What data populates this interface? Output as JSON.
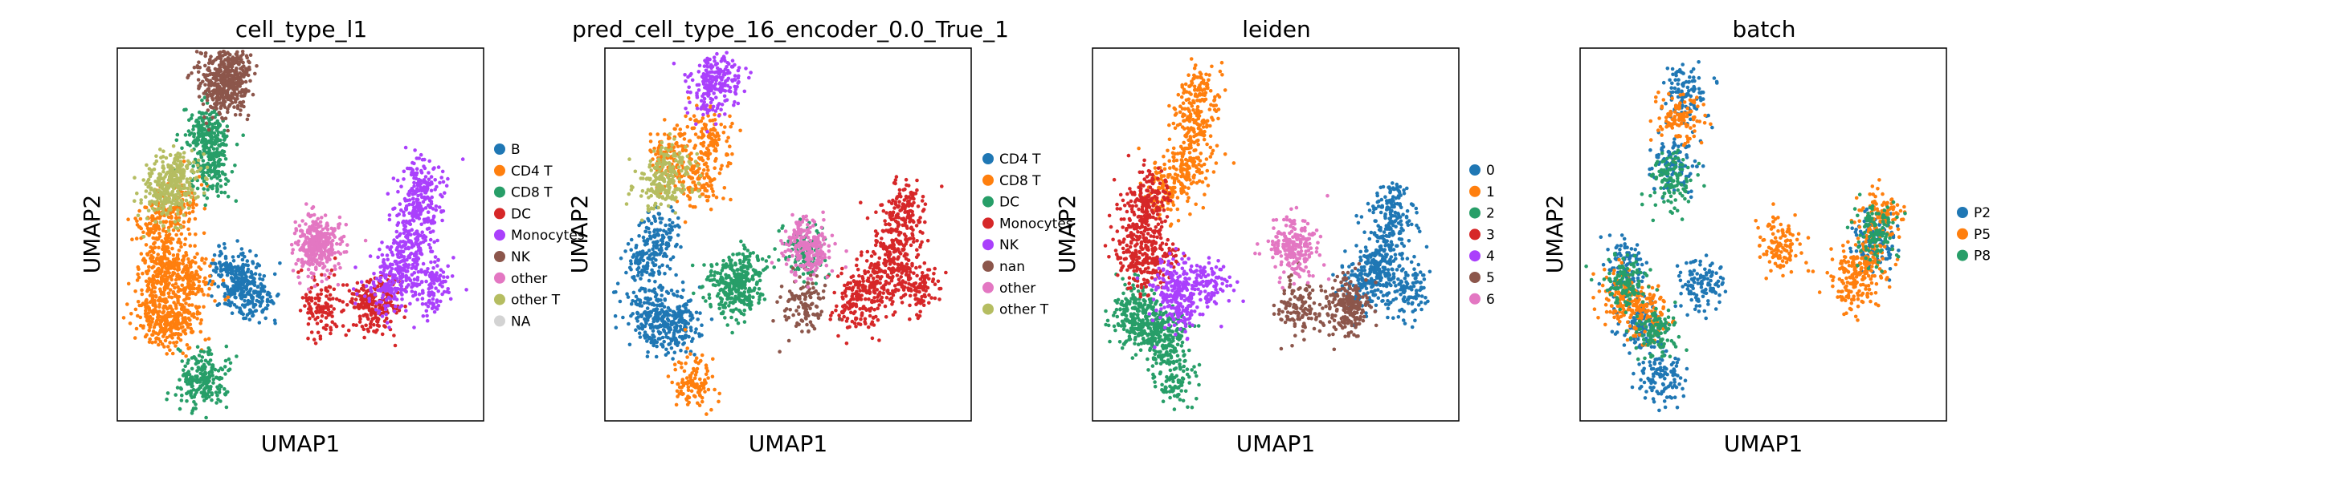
{
  "panels": [
    {
      "title": "cell_type_l1",
      "xlabel": "UMAP1",
      "ylabel": "UMAP2",
      "legend": [
        {
          "label": "B",
          "color": "#1f77b4"
        },
        {
          "label": "CD4 T",
          "color": "#ff7f0e"
        },
        {
          "label": "CD8 T",
          "color": "#279e68"
        },
        {
          "label": "DC",
          "color": "#d62728"
        },
        {
          "label": "Monocytes",
          "color": "#aa40fc"
        },
        {
          "label": "NK",
          "color": "#8c564b"
        },
        {
          "label": "other",
          "color": "#e377c2"
        },
        {
          "label": "other T",
          "color": "#b5bd61"
        },
        {
          "label": "NA",
          "color": "#d3d3d3"
        }
      ]
    },
    {
      "title": "pred_cell_type_16_encoder_0.0_True_1",
      "xlabel": "UMAP1",
      "ylabel": "UMAP2",
      "legend": [
        {
          "label": "CD4 T",
          "color": "#1f77b4"
        },
        {
          "label": "CD8 T",
          "color": "#ff7f0e"
        },
        {
          "label": "DC",
          "color": "#279e68"
        },
        {
          "label": "Monocytes",
          "color": "#d62728"
        },
        {
          "label": "NK",
          "color": "#aa40fc"
        },
        {
          "label": "nan",
          "color": "#8c564b"
        },
        {
          "label": "other",
          "color": "#e377c2"
        },
        {
          "label": "other T",
          "color": "#b5bd61"
        }
      ]
    },
    {
      "title": "leiden",
      "xlabel": "UMAP1",
      "ylabel": "UMAP2",
      "legend": [
        {
          "label": "0",
          "color": "#1f77b4"
        },
        {
          "label": "1",
          "color": "#ff7f0e"
        },
        {
          "label": "2",
          "color": "#279e68"
        },
        {
          "label": "3",
          "color": "#d62728"
        },
        {
          "label": "4",
          "color": "#aa40fc"
        },
        {
          "label": "5",
          "color": "#8c564b"
        },
        {
          "label": "6",
          "color": "#e377c2"
        }
      ]
    },
    {
      "title": "batch",
      "xlabel": "UMAP1",
      "ylabel": "UMAP2",
      "legend": [
        {
          "label": "P2",
          "color": "#1f77b4"
        },
        {
          "label": "P5",
          "color": "#ff7f0e"
        },
        {
          "label": "P8",
          "color": "#279e68"
        }
      ]
    }
  ],
  "chart_data": [
    {
      "type": "scatter",
      "title": "cell_type_l1",
      "xlabel": "UMAP1",
      "ylabel": "UMAP2",
      "series": [
        {
          "name": "B",
          "color": "#1f77b4",
          "points": [
            [
              3.2,
              3.6
            ],
            [
              3.6,
              3.2
            ],
            [
              3.0,
              3.9
            ]
          ]
        },
        {
          "name": "CD4 T",
          "color": "#ff7f0e",
          "points": [
            [
              0.9,
              3.9
            ],
            [
              1.2,
              4.2
            ],
            [
              0.8,
              5.2
            ],
            [
              0.7,
              2.8
            ],
            [
              1.1,
              2.5
            ],
            [
              1.6,
              2.6
            ],
            [
              1.9,
              3.8
            ],
            [
              1.5,
              5.8
            ]
          ]
        },
        {
          "name": "CD8 T",
          "color": "#279e68",
          "points": [
            [
              2.0,
              0.8
            ],
            [
              2.3,
              0.9
            ],
            [
              2.4,
              6.8
            ],
            [
              2.5,
              7.6
            ],
            [
              2.2,
              8.0
            ]
          ]
        },
        {
          "name": "DC",
          "color": "#d62728",
          "points": [
            [
              6.9,
              3.0
            ],
            [
              7.3,
              3.0
            ],
            [
              5.6,
              2.9
            ]
          ]
        },
        {
          "name": "Monocytes",
          "color": "#aa40fc",
          "points": [
            [
              8.2,
              4.8
            ],
            [
              8.4,
              5.8
            ],
            [
              8.0,
              4.0
            ],
            [
              8.8,
              3.5
            ],
            [
              7.5,
              3.5
            ],
            [
              8.6,
              6.5
            ]
          ]
        },
        {
          "name": "NK",
          "color": "#8c564b",
          "points": [
            [
              2.7,
              9.0
            ],
            [
              3.0,
              9.3
            ],
            [
              2.6,
              9.6
            ],
            [
              3.0,
              9.8
            ]
          ]
        },
        {
          "name": "other",
          "color": "#e377c2",
          "points": [
            [
              5.5,
              4.6
            ],
            [
              5.6,
              4.7
            ],
            [
              5.4,
              4.7
            ]
          ]
        },
        {
          "name": "other T",
          "color": "#b5bd61",
          "points": [
            [
              1.2,
              6.4
            ],
            [
              1.6,
              6.8
            ],
            [
              0.9,
              6.1
            ]
          ]
        }
      ]
    },
    {
      "type": "scatter",
      "title": "pred_cell_type_16_encoder_0.0_True_1",
      "xlabel": "UMAP1",
      "ylabel": "UMAP2",
      "series": [
        {
          "name": "CD4 T",
          "color": "#1f77b4",
          "points": [
            [
              0.9,
              2.7
            ],
            [
              1.4,
              2.4
            ],
            [
              1.9,
              2.6
            ],
            [
              0.9,
              4.1
            ],
            [
              1.2,
              5.0
            ]
          ]
        },
        {
          "name": "CD8 T",
          "color": "#ff7f0e",
          "points": [
            [
              2.2,
              0.8
            ],
            [
              2.4,
              6.6
            ],
            [
              2.7,
              7.8
            ],
            [
              1.6,
              7.2
            ]
          ]
        },
        {
          "name": "DC",
          "color": "#279e68",
          "points": [
            [
              3.2,
              3.6
            ],
            [
              3.5,
              3.4
            ],
            [
              3.8,
              3.9
            ],
            [
              5.4,
              4.6
            ]
          ]
        },
        {
          "name": "Monocytes",
          "color": "#d62728",
          "points": [
            [
              8.2,
              4.8
            ],
            [
              8.4,
              5.8
            ],
            [
              8.0,
              4.0
            ],
            [
              8.8,
              3.5
            ],
            [
              7.5,
              3.5
            ],
            [
              6.9,
              3.0
            ]
          ]
        },
        {
          "name": "NK",
          "color": "#aa40fc",
          "points": [
            [
              2.7,
              9.1
            ],
            [
              3.0,
              9.6
            ]
          ]
        },
        {
          "name": "nan",
          "color": "#8c564b",
          "points": [
            [
              5.5,
              3.0
            ]
          ]
        },
        {
          "name": "other",
          "color": "#e377c2",
          "points": [
            [
              5.5,
              4.7
            ],
            [
              5.6,
              4.6
            ]
          ]
        },
        {
          "name": "other T",
          "color": "#b5bd61",
          "points": [
            [
              1.2,
              6.4
            ],
            [
              1.6,
              6.8
            ]
          ]
        }
      ]
    },
    {
      "type": "scatter",
      "title": "leiden",
      "xlabel": "UMAP1",
      "ylabel": "UMAP2",
      "series": [
        {
          "name": "0",
          "color": "#1f77b4",
          "points": [
            [
              8.2,
              4.8
            ],
            [
              8.4,
              5.8
            ],
            [
              8.0,
              4.0
            ],
            [
              8.8,
              3.5
            ],
            [
              7.5,
              3.5
            ]
          ]
        },
        {
          "name": "1",
          "color": "#ff7f0e",
          "points": [
            [
              2.8,
              9.0
            ],
            [
              2.6,
              8.0
            ],
            [
              2.4,
              7.0
            ],
            [
              1.8,
              6.2
            ]
          ]
        },
        {
          "name": "2",
          "color": "#279e68",
          "points": [
            [
              1.0,
              2.3
            ],
            [
              1.5,
              2.4
            ],
            [
              2.0,
              0.9
            ],
            [
              1.9,
              2.0
            ],
            [
              0.9,
              2.9
            ]
          ]
        },
        {
          "name": "3",
          "color": "#d62728",
          "points": [
            [
              0.9,
              4.4
            ],
            [
              1.1,
              5.4
            ],
            [
              1.3,
              6.1
            ],
            [
              1.5,
              4.2
            ]
          ]
        },
        {
          "name": "4",
          "color": "#aa40fc",
          "points": [
            [
              3.0,
              3.6
            ],
            [
              2.2,
              3.0
            ],
            [
              2.1,
              3.6
            ]
          ]
        },
        {
          "name": "5",
          "color": "#8c564b",
          "points": [
            [
              6.9,
              3.0
            ],
            [
              7.2,
              3.0
            ],
            [
              5.6,
              2.9
            ]
          ]
        },
        {
          "name": "6",
          "color": "#e377c2",
          "points": [
            [
              5.5,
              4.6
            ],
            [
              5.6,
              4.7
            ]
          ]
        }
      ]
    },
    {
      "type": "scatter",
      "title": "batch",
      "xlabel": "UMAP1",
      "ylabel": "UMAP2",
      "series": [
        {
          "name": "P2",
          "color": "#1f77b4",
          "points": [
            [
              2.8,
              9.0
            ],
            [
              2.4,
              7.0
            ],
            [
              1.0,
              4.0
            ],
            [
              1.4,
              2.4
            ],
            [
              2.0,
              1.0
            ],
            [
              3.2,
              3.6
            ],
            [
              8.2,
              4.8
            ]
          ]
        },
        {
          "name": "P5",
          "color": "#ff7f0e",
          "points": [
            [
              0.9,
              3.2
            ],
            [
              1.6,
              2.8
            ],
            [
              2.6,
              8.3
            ],
            [
              8.4,
              5.5
            ],
            [
              8.0,
              4.2
            ],
            [
              7.6,
              3.6
            ],
            [
              5.5,
              4.7
            ]
          ]
        },
        {
          "name": "P8",
          "color": "#279e68",
          "points": [
            [
              1.0,
              3.6
            ],
            [
              2.3,
              6.6
            ],
            [
              8.3,
              5.1
            ],
            [
              1.9,
              2.2
            ]
          ]
        }
      ]
    }
  ]
}
